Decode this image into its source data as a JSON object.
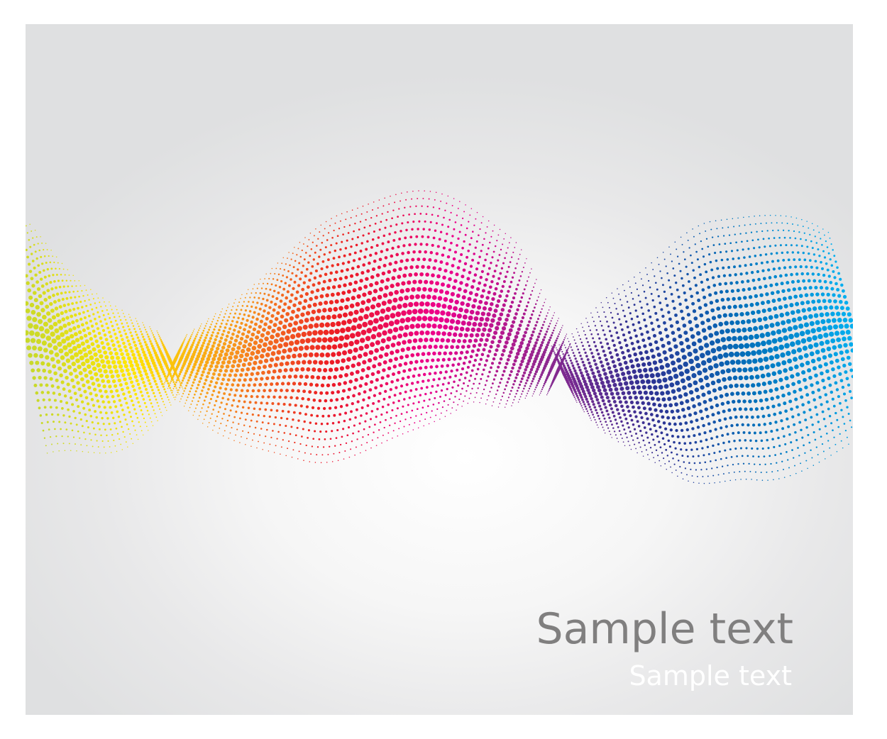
{
  "texts": {
    "headline": "Sample text",
    "subline": "Sample text"
  },
  "palette": {
    "background_light": "#ffffff",
    "background_edge": "#dfe0e1",
    "headline_color": "#807f7f",
    "subline_color": "#ffffff",
    "wave_colors": [
      "#c8d92a",
      "#ffe600",
      "#f7941d",
      "#ec1c24",
      "#ec008c",
      "#92278f",
      "#2e3192",
      "#0072bc",
      "#00aeef"
    ]
  }
}
